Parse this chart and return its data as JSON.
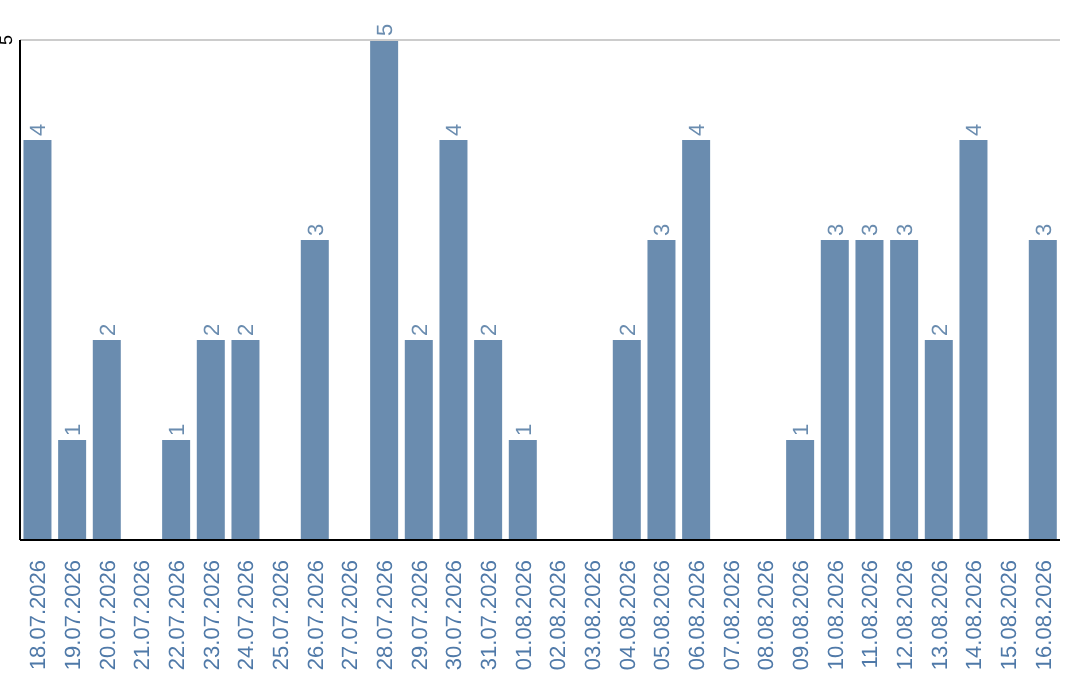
{
  "chart_data": {
    "type": "bar",
    "categories": [
      "18.07.2026",
      "19.07.2026",
      "20.07.2026",
      "21.07.2026",
      "22.07.2026",
      "23.07.2026",
      "24.07.2026",
      "25.07.2026",
      "26.07.2026",
      "27.07.2026",
      "28.07.2026",
      "29.07.2026",
      "30.07.2026",
      "31.07.2026",
      "01.08.2026",
      "02.08.2026",
      "03.08.2026",
      "04.08.2026",
      "05.08.2026",
      "06.08.2026",
      "07.08.2026",
      "08.08.2026",
      "09.08.2026",
      "10.08.2026",
      "11.08.2026",
      "12.08.2026",
      "13.08.2026",
      "14.08.2026",
      "15.08.2026",
      "16.08.2026"
    ],
    "values": [
      4,
      1,
      2,
      null,
      1,
      2,
      2,
      null,
      3,
      null,
      5,
      2,
      4,
      2,
      1,
      null,
      null,
      2,
      3,
      4,
      null,
      null,
      1,
      3,
      3,
      3,
      2,
      4,
      null,
      3
    ],
    "color": "#6a8caf",
    "ylim": [
      0,
      5
    ],
    "yticks": [
      5
    ],
    "ref_lines": [
      {
        "axis": "y",
        "value": 5,
        "color": "#cccccc"
      }
    ],
    "data_labels": true
  }
}
